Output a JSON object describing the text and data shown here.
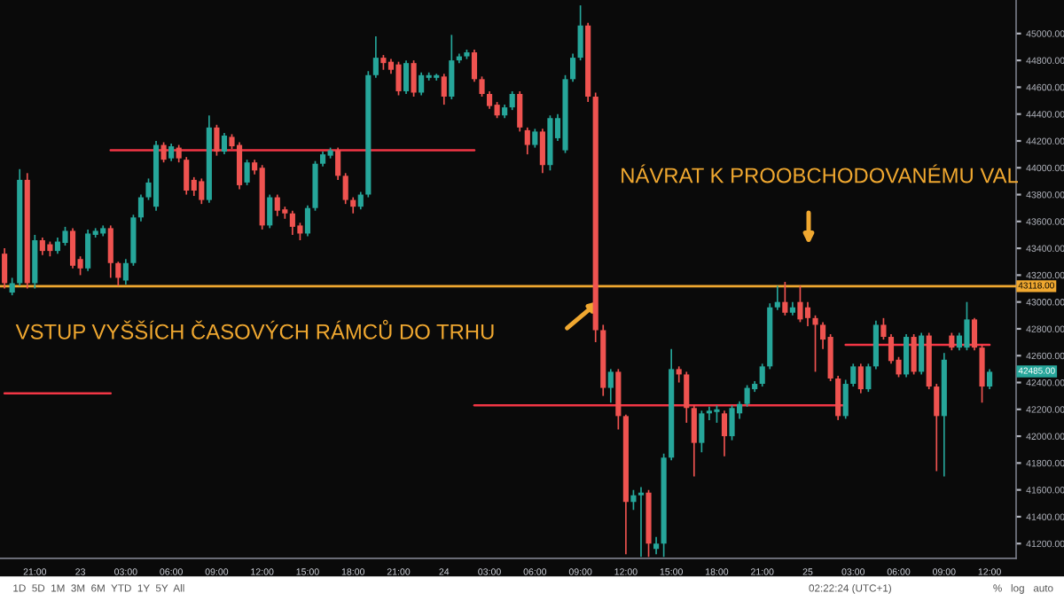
{
  "chart_data": {
    "type": "candlestick",
    "categories": [
      null,
      null,
      null,
      null,
      "21:00",
      null,
      null,
      null,
      null,
      null,
      "23",
      null,
      null,
      null,
      null,
      null,
      "03:00",
      null,
      null,
      null,
      null,
      null,
      "06:00",
      null,
      null,
      null,
      null,
      null,
      "09:00",
      null,
      null,
      null,
      null,
      null,
      "12:00",
      null,
      null,
      null,
      null,
      null,
      "15:00",
      null,
      null,
      null,
      null,
      null,
      "18:00",
      null,
      null,
      null,
      null,
      null,
      "21:00",
      null,
      null,
      null,
      null,
      null,
      "24",
      null,
      null,
      null,
      null,
      null,
      "03:00",
      null,
      null,
      null,
      null,
      null,
      "06:00",
      null,
      null,
      null,
      null,
      null,
      "09:00",
      null,
      null,
      null,
      null,
      null,
      "12:00",
      null,
      null,
      null,
      null,
      null,
      "15:00",
      null,
      null,
      null,
      null,
      null,
      "18:00",
      null,
      null,
      null,
      null,
      null,
      "21:00",
      null,
      null,
      null,
      null,
      null,
      "25",
      null,
      null,
      null,
      null,
      null,
      "03:00",
      null,
      null,
      null,
      null,
      null,
      "06:00",
      null,
      null,
      null,
      null,
      null,
      "09:00",
      null,
      null,
      null,
      null,
      null,
      "12:00"
    ],
    "ohlc": [
      [
        43360,
        43400,
        43100,
        43140
      ],
      [
        43070,
        43180,
        43050,
        43140
      ],
      [
        43140,
        43990,
        43120,
        43910
      ],
      [
        43910,
        43960,
        43100,
        43140
      ],
      [
        43140,
        43500,
        43100,
        43460
      ],
      [
        43460,
        43480,
        43350,
        43380
      ],
      [
        43430,
        43450,
        43340,
        43380
      ],
      [
        43380,
        43480,
        43360,
        43450
      ],
      [
        43440,
        43560,
        43420,
        43530
      ],
      [
        43530,
        43550,
        43250,
        43270
      ],
      [
        43320,
        43340,
        43200,
        43250
      ],
      [
        43250,
        43540,
        43230,
        43510
      ],
      [
        43500,
        43550,
        43480,
        43530
      ],
      [
        43510,
        43570,
        43490,
        43550
      ],
      [
        43550,
        43570,
        43180,
        43290
      ],
      [
        43290,
        43300,
        43120,
        43180
      ],
      [
        43160,
        43320,
        43130,
        43290
      ],
      [
        43290,
        43650,
        43270,
        43630
      ],
      [
        43630,
        43800,
        43600,
        43780
      ],
      [
        43780,
        43920,
        43760,
        43890
      ],
      [
        43710,
        44200,
        43680,
        44170
      ],
      [
        44170,
        44190,
        44040,
        44060
      ],
      [
        44070,
        44180,
        44050,
        44160
      ],
      [
        44150,
        44170,
        44040,
        44070
      ],
      [
        44060,
        44080,
        43800,
        43830
      ],
      [
        43910,
        43930,
        43790,
        43830
      ],
      [
        43900,
        43920,
        43730,
        43760
      ],
      [
        43760,
        44390,
        43740,
        44300
      ],
      [
        44300,
        44320,
        44090,
        44120
      ],
      [
        44120,
        44260,
        44100,
        44240
      ],
      [
        44230,
        44250,
        44140,
        44160
      ],
      [
        44170,
        44190,
        43840,
        43870
      ],
      [
        43890,
        44060,
        43870,
        44040
      ],
      [
        44040,
        44060,
        43950,
        43980
      ],
      [
        44000,
        44020,
        43540,
        43570
      ],
      [
        43570,
        43800,
        43550,
        43780
      ],
      [
        43780,
        43800,
        43640,
        43680
      ],
      [
        43690,
        43710,
        43620,
        43660
      ],
      [
        43660,
        43680,
        43500,
        43560
      ],
      [
        43570,
        43590,
        43460,
        43510
      ],
      [
        43510,
        43720,
        43490,
        43700
      ],
      [
        43700,
        44050,
        43680,
        44030
      ],
      [
        44030,
        44120,
        44010,
        44100
      ],
      [
        44090,
        44150,
        44070,
        44130
      ],
      [
        44130,
        44150,
        43910,
        43940
      ],
      [
        43940,
        43960,
        43730,
        43760
      ],
      [
        43760,
        43780,
        43660,
        43710
      ],
      [
        43710,
        43820,
        43690,
        43800
      ],
      [
        43800,
        44720,
        43780,
        44690
      ],
      [
        44690,
        44980,
        44670,
        44820
      ],
      [
        44820,
        44840,
        44730,
        44780
      ],
      [
        44790,
        44810,
        44700,
        44730
      ],
      [
        44770,
        44790,
        44540,
        44570
      ],
      [
        44570,
        44800,
        44550,
        44780
      ],
      [
        44780,
        44800,
        44530,
        44560
      ],
      [
        44560,
        44710,
        44540,
        44690
      ],
      [
        44670,
        44710,
        44650,
        44690
      ],
      [
        44670,
        44700,
        44650,
        44690
      ],
      [
        44680,
        44700,
        44470,
        44530
      ],
      [
        44530,
        44990,
        44510,
        44800
      ],
      [
        44800,
        44850,
        44780,
        44830
      ],
      [
        44830,
        44880,
        44810,
        44860
      ],
      [
        44860,
        44880,
        44640,
        44660
      ],
      [
        44660,
        44680,
        44530,
        44550
      ],
      [
        44550,
        44570,
        44440,
        44460
      ],
      [
        44470,
        44490,
        44370,
        44390
      ],
      [
        44390,
        44470,
        44370,
        44450
      ],
      [
        44450,
        44570,
        44430,
        44550
      ],
      [
        44550,
        44570,
        44270,
        44300
      ],
      [
        44280,
        44300,
        44100,
        44170
      ],
      [
        44170,
        44290,
        44150,
        44270
      ],
      [
        44270,
        44290,
        43960,
        44020
      ],
      [
        44020,
        44390,
        43980,
        44370
      ],
      [
        44220,
        44400,
        44200,
        44370
      ],
      [
        44130,
        44690,
        44110,
        44660
      ],
      [
        44660,
        44850,
        44640,
        44820
      ],
      [
        44820,
        45210,
        44800,
        45060
      ],
      [
        45060,
        45080,
        44490,
        44530
      ],
      [
        44530,
        44560,
        42700,
        42790
      ],
      [
        42790,
        42830,
        42300,
        42360
      ],
      [
        42360,
        42500,
        42250,
        42480
      ],
      [
        42480,
        42500,
        42050,
        42150
      ],
      [
        42150,
        42160,
        41120,
        41510
      ],
      [
        41510,
        41600,
        41450,
        41560
      ],
      [
        41560,
        41620,
        41100,
        41580
      ],
      [
        41580,
        41600,
        41100,
        41200
      ],
      [
        41160,
        41250,
        41120,
        41200
      ],
      [
        41200,
        41870,
        41100,
        41840
      ],
      [
        41840,
        42650,
        41820,
        42500
      ],
      [
        42500,
        42520,
        42400,
        42460
      ],
      [
        42460,
        42480,
        42100,
        42210
      ],
      [
        42210,
        42230,
        41700,
        41950
      ],
      [
        41950,
        42190,
        41880,
        42170
      ],
      [
        42170,
        42220,
        42120,
        42190
      ],
      [
        42180,
        42230,
        42100,
        42200
      ],
      [
        42170,
        42190,
        41850,
        42000
      ],
      [
        42000,
        42230,
        41970,
        42210
      ],
      [
        42170,
        42260,
        42130,
        42240
      ],
      [
        42240,
        42380,
        42220,
        42360
      ],
      [
        42350,
        42410,
        42330,
        42390
      ],
      [
        42390,
        42540,
        42370,
        42520
      ],
      [
        42520,
        42990,
        42500,
        42960
      ],
      [
        42960,
        43120,
        42940,
        43000
      ],
      [
        43000,
        43150,
        42900,
        42920
      ],
      [
        42920,
        43000,
        42900,
        42960
      ],
      [
        43000,
        43120,
        42850,
        42870
      ],
      [
        42960,
        43000,
        42820,
        42880
      ],
      [
        42880,
        42900,
        42480,
        42830
      ],
      [
        42830,
        42850,
        42650,
        42720
      ],
      [
        42740,
        42760,
        42410,
        42430
      ],
      [
        42430,
        42450,
        42120,
        42150
      ],
      [
        42150,
        42420,
        42130,
        42390
      ],
      [
        42390,
        42540,
        42370,
        42520
      ],
      [
        42520,
        42540,
        42320,
        42350
      ],
      [
        42350,
        42540,
        42330,
        42520
      ],
      [
        42520,
        42860,
        42500,
        42830
      ],
      [
        42830,
        42880,
        42720,
        42740
      ],
      [
        42740,
        42760,
        42540,
        42560
      ],
      [
        42570,
        42590,
        42440,
        42460
      ],
      [
        42460,
        42760,
        42440,
        42740
      ],
      [
        42740,
        42760,
        42460,
        42480
      ],
      [
        42480,
        42770,
        42460,
        42750
      ],
      [
        42750,
        42770,
        42350,
        42370
      ],
      [
        42370,
        42390,
        41740,
        42150
      ],
      [
        42150,
        42620,
        41700,
        42570
      ],
      [
        42750,
        42770,
        42640,
        42660
      ],
      [
        42660,
        42770,
        42640,
        42750
      ],
      [
        42660,
        43000,
        42640,
        42870
      ],
      [
        42870,
        42880,
        42640,
        42660
      ],
      [
        42660,
        42680,
        42250,
        42370
      ],
      [
        42370,
        42500,
        42350,
        42480
      ]
    ],
    "colors": [
      "#ef5350",
      "#26a69a",
      "#26a69a",
      "#ef5350",
      "#26a69a",
      "#ef5350",
      "#ef5350",
      "#26a69a",
      "#26a69a",
      "#ef5350",
      "#ef5350",
      "#26a69a",
      "#26a69a",
      "#26a69a",
      "#ef5350",
      "#ef5350",
      "#26a69a",
      "#26a69a",
      "#26a69a",
      "#26a69a",
      "#26a69a",
      "#ef5350",
      "#26a69a",
      "#ef5350",
      "#ef5350",
      "#ef5350",
      "#ef5350",
      "#26a69a",
      "#ef5350",
      "#26a69a",
      "#ef5350",
      "#ef5350",
      "#26a69a",
      "#ef5350",
      "#ef5350",
      "#26a69a",
      "#ef5350",
      "#ef5350",
      "#ef5350",
      "#ef5350",
      "#26a69a",
      "#26a69a",
      "#26a69a",
      "#26a69a",
      "#ef5350",
      "#ef5350",
      "#ef5350",
      "#26a69a",
      "#26a69a",
      "#26a69a",
      "#ef5350",
      "#ef5350",
      "#ef5350",
      "#26a69a",
      "#ef5350",
      "#26a69a",
      "#26a69a",
      "#26a69a",
      "#ef5350",
      "#26a69a",
      "#26a69a",
      "#26a69a",
      "#ef5350",
      "#ef5350",
      "#ef5350",
      "#ef5350",
      "#26a69a",
      "#26a69a",
      "#ef5350",
      "#ef5350",
      "#26a69a",
      "#ef5350",
      "#26a69a",
      "#26a69a",
      "#26a69a",
      "#26a69a",
      "#26a69a",
      "#ef5350",
      "#ef5350",
      "#ef5350",
      "#26a69a",
      "#ef5350",
      "#ef5350",
      "#26a69a",
      "#26a69a",
      "#ef5350",
      "#26a69a",
      "#26a69a",
      "#26a69a",
      "#ef5350",
      "#ef5350",
      "#ef5350",
      "#26a69a",
      "#26a69a",
      "#26a69a",
      "#ef5350",
      "#26a69a",
      "#26a69a",
      "#26a69a",
      "#26a69a",
      "#26a69a",
      "#26a69a",
      "#26a69a",
      "#ef5350",
      "#26a69a",
      "#ef5350",
      "#ef5350",
      "#ef5350",
      "#ef5350",
      "#ef5350",
      "#ef5350",
      "#26a69a",
      "#26a69a",
      "#ef5350",
      "#26a69a",
      "#26a69a",
      "#ef5350",
      "#ef5350",
      "#ef5350",
      "#26a69a",
      "#ef5350",
      "#26a69a",
      "#ef5350",
      "#ef5350",
      "#26a69a",
      "#ef5350",
      "#26a69a",
      "#26a69a",
      "#ef5350",
      "#ef5350",
      "#26a69a"
    ],
    "series": [
      {
        "type": "line",
        "color": "#f23645",
        "values": [
          42320,
          42320,
          42320,
          42320,
          42320,
          42320,
          42320,
          42320,
          42320,
          42320,
          42320,
          42320,
          42320,
          42320,
          42320,
          null,
          null,
          null,
          null,
          null,
          null,
          null,
          null,
          null,
          null,
          null,
          null,
          null,
          null,
          null,
          null,
          null,
          null,
          null,
          null,
          null,
          null,
          null,
          null,
          null,
          null,
          null,
          null,
          null,
          null,
          null,
          null,
          null,
          null,
          null,
          null,
          null,
          null,
          null,
          null,
          null,
          null,
          null,
          null,
          null,
          null,
          null,
          null,
          null,
          null,
          null,
          null,
          null,
          null,
          null,
          null,
          null,
          null,
          null,
          null,
          null,
          null,
          null,
          null,
          null,
          null,
          null,
          null,
          null,
          null,
          null,
          null,
          null,
          null,
          null,
          null,
          null,
          null,
          null,
          null,
          null,
          null,
          null,
          null,
          null,
          null,
          null,
          null,
          null,
          null,
          null,
          null,
          null,
          null,
          null,
          null,
          null,
          null,
          null,
          null,
          null,
          null,
          null,
          null,
          null,
          null,
          null,
          null,
          null,
          null,
          null,
          null,
          null,
          null,
          null,
          null
        ]
      },
      {
        "type": "line",
        "color": "#f23645",
        "values": [
          null,
          null,
          null,
          null,
          null,
          null,
          null,
          null,
          null,
          null,
          null,
          null,
          null,
          null,
          44130,
          44130,
          44130,
          44130,
          44130,
          44130,
          44130,
          44130,
          44130,
          44130,
          44130,
          44130,
          44130,
          44130,
          44130,
          44130,
          44130,
          44130,
          44130,
          44130,
          44130,
          44130,
          44130,
          44130,
          44130,
          44130,
          44130,
          44130,
          44130,
          44130,
          44130,
          44130,
          44130,
          44130,
          44130,
          44130,
          44130,
          44130,
          44130,
          44130,
          44130,
          44130,
          44130,
          44130,
          44130,
          44130,
          44130,
          44130,
          44130,
          null,
          null,
          null,
          null,
          null,
          null,
          null,
          null,
          null,
          null,
          null,
          null,
          null,
          null,
          null,
          null,
          null,
          null,
          null,
          null,
          null,
          null,
          null,
          null,
          null,
          null,
          null,
          null,
          null,
          null,
          null,
          null,
          null,
          null,
          null,
          null,
          null,
          null,
          null,
          null,
          null,
          null,
          null,
          null,
          null,
          null,
          null,
          null,
          null,
          null,
          null,
          null,
          null,
          null,
          null,
          null,
          null,
          null,
          null,
          null,
          null,
          null,
          null,
          null,
          null,
          null,
          null,
          null
        ]
      },
      {
        "type": "line",
        "color": "#f23645",
        "values": [
          null,
          null,
          null,
          null,
          null,
          null,
          null,
          null,
          null,
          null,
          null,
          null,
          null,
          null,
          null,
          null,
          null,
          null,
          null,
          null,
          null,
          null,
          null,
          null,
          null,
          null,
          null,
          null,
          null,
          null,
          null,
          null,
          null,
          null,
          null,
          null,
          null,
          null,
          null,
          null,
          null,
          null,
          null,
          null,
          null,
          null,
          null,
          null,
          null,
          null,
          null,
          null,
          null,
          null,
          null,
          null,
          null,
          null,
          null,
          null,
          null,
          null,
          42230,
          42230,
          42230,
          42230,
          42230,
          42230,
          42230,
          42230,
          42230,
          42230,
          42230,
          42230,
          42230,
          42230,
          42230,
          42230,
          42230,
          42230,
          42230,
          42230,
          42230,
          42230,
          42230,
          42230,
          42230,
          42230,
          42230,
          42230,
          42230,
          42230,
          42230,
          42230,
          42230,
          42230,
          42230,
          42230,
          42230,
          42230,
          42230,
          42230,
          42230,
          42230,
          42230,
          42230,
          42230,
          42230,
          42230,
          42230,
          42230,
          42230,
          null,
          null,
          null,
          null,
          null,
          null,
          null,
          null,
          null,
          null,
          null,
          null,
          null,
          null,
          null,
          null,
          null,
          null,
          null
        ]
      },
      {
        "type": "line",
        "color": "#f23645",
        "values": [
          null,
          null,
          null,
          null,
          null,
          null,
          null,
          null,
          null,
          null,
          null,
          null,
          null,
          null,
          null,
          null,
          null,
          null,
          null,
          null,
          null,
          null,
          null,
          null,
          null,
          null,
          null,
          null,
          null,
          null,
          null,
          null,
          null,
          null,
          null,
          null,
          null,
          null,
          null,
          null,
          null,
          null,
          null,
          null,
          null,
          null,
          null,
          null,
          null,
          null,
          null,
          null,
          null,
          null,
          null,
          null,
          null,
          null,
          null,
          null,
          null,
          null,
          null,
          null,
          null,
          null,
          null,
          null,
          null,
          null,
          null,
          null,
          null,
          null,
          null,
          null,
          null,
          null,
          null,
          null,
          null,
          null,
          null,
          null,
          null,
          null,
          null,
          null,
          null,
          null,
          null,
          null,
          null,
          null,
          null,
          null,
          null,
          null,
          null,
          null,
          null,
          null,
          null,
          null,
          null,
          null,
          null,
          null,
          null,
          null,
          null,
          42680,
          42680,
          42680,
          42680,
          42680,
          42680,
          42680,
          42680,
          42680,
          42680,
          42680,
          42680,
          42680,
          42680,
          42680,
          42680,
          42680,
          42680,
          42680,
          42680
        ]
      }
    ],
    "ref_lines": [
      {
        "axis": "y",
        "value": 43118,
        "label": "43118.00",
        "color": "#f0a830"
      }
    ],
    "ylim": [
      41090,
      45250
    ],
    "yticks": [
      {
        "value": 41200,
        "label": "41200.00"
      },
      {
        "value": 41400,
        "label": "41400.00"
      },
      {
        "value": 41600,
        "label": "41600.00"
      },
      {
        "value": 41800,
        "label": "41800.00"
      },
      {
        "value": 42000,
        "label": "42000.00"
      },
      {
        "value": 42200,
        "label": "42200.00"
      },
      {
        "value": 42400,
        "label": "42400.00"
      },
      {
        "value": 42600,
        "label": "42600.00"
      },
      {
        "value": 42800,
        "label": "42800.00"
      },
      {
        "value": 43000,
        "label": "43000.00"
      },
      {
        "value": 43200,
        "label": "43200.00"
      },
      {
        "value": 43400,
        "label": "43400.00"
      },
      {
        "value": 43600,
        "label": "43600.00"
      },
      {
        "value": 43800,
        "label": "43800.00"
      },
      {
        "value": 44000,
        "label": "44000.00"
      },
      {
        "value": 44200,
        "label": "44200.00"
      },
      {
        "value": 44400,
        "label": "44400.00"
      },
      {
        "value": 44600,
        "label": "44600.00"
      },
      {
        "value": 44800,
        "label": "44800.00"
      },
      {
        "value": 45000,
        "label": "45000.00"
      }
    ],
    "annotations": [
      "VSTUP VYŠŠÍCH ČASOVÝCH RÁMCŮ DO TRHU",
      "NÁVRAT K PROOBCHODOVANÉMU VAL",
      "1D  5D  1M  3M  6M  YTD  1Y  5Y  All",
      "02:22:24 (UTC+1)",
      "%   log   auto",
      "42485.00"
    ],
    "grid": false
  }
}
